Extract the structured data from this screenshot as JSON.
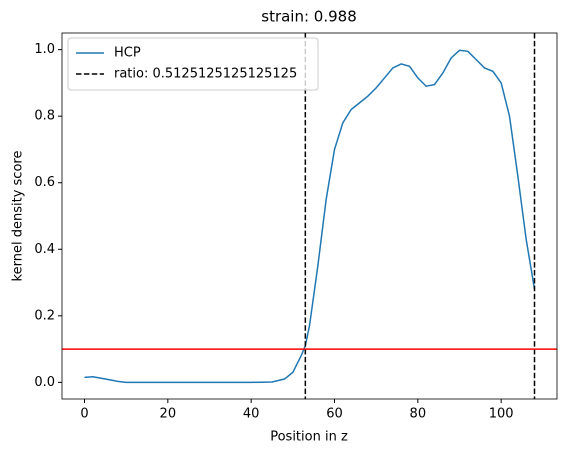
{
  "chart_data": {
    "type": "line",
    "title": "strain: 0.988",
    "x_label": "Position in z",
    "y_label": "kernel density score",
    "x": [
      0,
      2,
      5,
      8,
      10,
      20,
      30,
      40,
      45,
      48,
      50,
      52,
      53,
      54,
      56,
      58,
      60,
      62,
      64,
      66,
      68,
      70,
      72,
      74,
      76,
      78,
      80,
      82,
      84,
      86,
      88,
      90,
      92,
      94,
      96,
      98,
      100,
      102,
      104,
      106,
      108
    ],
    "series": [
      {
        "name": "HCP",
        "color": "#1f77b4",
        "values": [
          0.015,
          0.017,
          0.01,
          0.003,
          0,
          0,
          0,
          0,
          0.001,
          0.01,
          0.03,
          0.08,
          0.11,
          0.17,
          0.35,
          0.55,
          0.7,
          0.78,
          0.82,
          0.84,
          0.86,
          0.885,
          0.915,
          0.945,
          0.957,
          0.95,
          0.915,
          0.89,
          0.895,
          0.93,
          0.975,
          0.998,
          0.995,
          0.97,
          0.945,
          0.935,
          0.9,
          0.8,
          0.62,
          0.43,
          0.28
        ]
      }
    ],
    "vlines": {
      "name": "ratio: 0.5125125125125125",
      "color": "#000000",
      "x": [
        53,
        108
      ]
    },
    "hline": {
      "y": 0.1,
      "color": "#ff0000"
    },
    "xlim": [
      -5.4,
      113.4
    ],
    "ylim": [
      -0.05,
      1.05
    ],
    "xticks": [
      0,
      20,
      40,
      60,
      80,
      100
    ],
    "yticks": [
      {
        "value": 0,
        "label": "0.0"
      },
      {
        "value": 0.2,
        "label": "0.2"
      },
      {
        "value": 0.4,
        "label": "0.4"
      },
      {
        "value": 0.6,
        "label": "0.6"
      },
      {
        "value": 0.8,
        "label": "0.8"
      },
      {
        "value": 1,
        "label": "1.0"
      }
    ],
    "legend": "upper left"
  }
}
